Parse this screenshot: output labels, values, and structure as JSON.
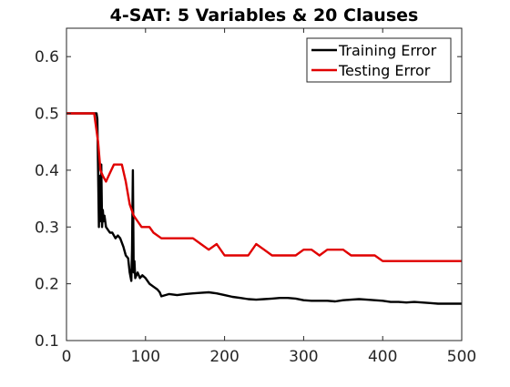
{
  "chart_data": {
    "type": "line",
    "title": "4-SAT: 5 Variables & 20 Clauses",
    "xlabel": "",
    "ylabel": "",
    "xlim": [
      0,
      500
    ],
    "ylim": [
      0.1,
      0.65
    ],
    "xticks": [
      0,
      100,
      200,
      300,
      400,
      500
    ],
    "xtick_labels": [
      "0",
      "100",
      "200",
      "300",
      "400",
      "500"
    ],
    "yticks": [
      0.1,
      0.2,
      0.3,
      0.4,
      0.5,
      0.6
    ],
    "ytick_labels": [
      "0.1",
      "0.2",
      "0.3",
      "0.4",
      "0.5",
      "0.6"
    ],
    "grid": false,
    "legend_position": "top-right",
    "series": [
      {
        "name": "Training Error",
        "color": "#000000",
        "x": [
          0,
          38,
          39,
          40,
          41,
          42,
          43,
          44,
          45,
          46,
          47,
          48,
          50,
          55,
          58,
          62,
          65,
          68,
          72,
          75,
          78,
          80,
          82,
          83,
          84,
          85,
          86,
          87,
          90,
          93,
          96,
          100,
          105,
          110,
          115,
          118,
          120,
          125,
          130,
          140,
          150,
          160,
          170,
          180,
          190,
          200,
          210,
          220,
          230,
          240,
          250,
          260,
          270,
          280,
          290,
          300,
          310,
          320,
          330,
          340,
          350,
          360,
          370,
          380,
          390,
          400,
          410,
          420,
          430,
          440,
          450,
          460,
          470,
          480,
          490,
          500
        ],
        "y": [
          0.5,
          0.5,
          0.49,
          0.4,
          0.3,
          0.39,
          0.31,
          0.41,
          0.3,
          0.33,
          0.31,
          0.32,
          0.3,
          0.29,
          0.29,
          0.28,
          0.285,
          0.28,
          0.265,
          0.25,
          0.245,
          0.22,
          0.205,
          0.26,
          0.4,
          0.22,
          0.24,
          0.21,
          0.22,
          0.21,
          0.215,
          0.21,
          0.2,
          0.195,
          0.19,
          0.185,
          0.178,
          0.18,
          0.182,
          0.18,
          0.182,
          0.183,
          0.184,
          0.185,
          0.183,
          0.18,
          0.177,
          0.175,
          0.173,
          0.172,
          0.173,
          0.174,
          0.175,
          0.175,
          0.174,
          0.171,
          0.17,
          0.17,
          0.17,
          0.169,
          0.171,
          0.172,
          0.173,
          0.172,
          0.171,
          0.17,
          0.168,
          0.168,
          0.167,
          0.168,
          0.167,
          0.166,
          0.165,
          0.165,
          0.165,
          0.165
        ]
      },
      {
        "name": "Testing Error",
        "color": "#e00000",
        "x": [
          0,
          30,
          35,
          40,
          43,
          46,
          50,
          55,
          60,
          65,
          70,
          75,
          80,
          85,
          90,
          95,
          100,
          105,
          110,
          120,
          130,
          140,
          150,
          160,
          170,
          180,
          190,
          200,
          210,
          220,
          230,
          240,
          250,
          260,
          270,
          280,
          290,
          300,
          310,
          320,
          330,
          340,
          350,
          360,
          370,
          380,
          390,
          400,
          410,
          420,
          430,
          440,
          450,
          460,
          470,
          480,
          490,
          500
        ],
        "y": [
          0.5,
          0.5,
          0.5,
          0.45,
          0.4,
          0.39,
          0.38,
          0.395,
          0.41,
          0.41,
          0.41,
          0.38,
          0.34,
          0.32,
          0.31,
          0.3,
          0.3,
          0.3,
          0.29,
          0.28,
          0.28,
          0.28,
          0.28,
          0.28,
          0.27,
          0.26,
          0.27,
          0.25,
          0.25,
          0.25,
          0.25,
          0.27,
          0.26,
          0.25,
          0.25,
          0.25,
          0.25,
          0.26,
          0.26,
          0.25,
          0.26,
          0.26,
          0.26,
          0.25,
          0.25,
          0.25,
          0.25,
          0.24,
          0.24,
          0.24,
          0.24,
          0.24,
          0.24,
          0.24,
          0.24,
          0.24,
          0.24,
          0.24
        ]
      }
    ]
  }
}
